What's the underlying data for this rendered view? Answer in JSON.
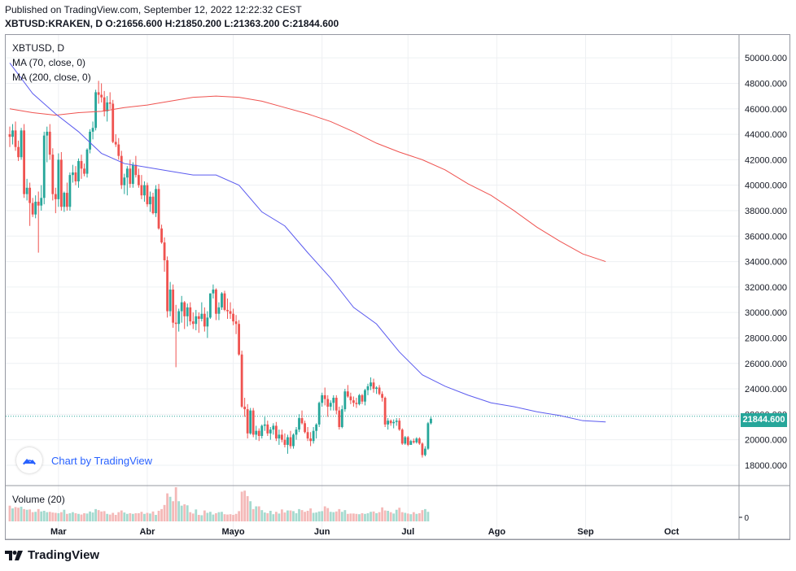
{
  "header": {
    "published": "Published on TradingView.com, September 12, 2022 12:22:32 CEST",
    "symbol": "XBTUSD:KRAKEN, D",
    "ohlc": " O:21656.600 H:21850.200 L:21363.200 C:21844.600"
  },
  "legend": {
    "title": "XBTUSD, D",
    "ma70": "MA (70, close, 0)",
    "ma200": "MA (200, close, 0)",
    "volume": "Volume (20)"
  },
  "badge": {
    "text": "Chart by TradingView",
    "icon": "tradingview-cloud-icon"
  },
  "last_price_label": "21844.600",
  "footer": {
    "logo_text": "TradingView",
    "icon": "tradingview-logo-icon"
  },
  "colors": {
    "up": "#26a69a",
    "down": "#ef5350",
    "ma70": "#5b5bef",
    "ma200": "#ef5350",
    "grid": "#eef0f3",
    "vol_up": "#a5dacf",
    "vol_down": "#f4b9b8"
  },
  "chart_data": {
    "type": "candlestick",
    "title": "XBTUSD, D",
    "y_ticks": [
      18000,
      20000,
      22000,
      24000,
      26000,
      28000,
      30000,
      32000,
      34000,
      36000,
      38000,
      40000,
      42000,
      44000,
      46000,
      48000,
      50000
    ],
    "y_tick_labels": [
      "18000.000",
      "20000.000",
      "22000.000",
      "24000.000",
      "26000.000",
      "28000.000",
      "30000.000",
      "32000.000",
      "34000.000",
      "36000.000",
      "38000.000",
      "40000.000",
      "42000.000",
      "44000.000",
      "46000.000",
      "48000.000",
      "50000.000"
    ],
    "ylim": [
      16400,
      51800
    ],
    "volume_tick_label": "0",
    "x_labels": [
      "Mar",
      "Abr",
      "Mayo",
      "Jun",
      "Jul",
      "Ago",
      "Sep",
      "Oct"
    ],
    "x_label_day_index": [
      17,
      48,
      78,
      109,
      139,
      170,
      201,
      231
    ],
    "last_price": 21844.6,
    "ma70": [
      [
        0,
        49600
      ],
      [
        8,
        47200
      ],
      [
        16,
        45600
      ],
      [
        24,
        44200
      ],
      [
        32,
        42500
      ],
      [
        40,
        41700
      ],
      [
        48,
        41400
      ],
      [
        56,
        41100
      ],
      [
        64,
        40800
      ],
      [
        72,
        40800
      ],
      [
        80,
        40000
      ],
      [
        88,
        37900
      ],
      [
        96,
        36800
      ],
      [
        104,
        34700
      ],
      [
        112,
        32700
      ],
      [
        120,
        30400
      ],
      [
        128,
        29100
      ],
      [
        136,
        26900
      ],
      [
        144,
        25100
      ],
      [
        152,
        24200
      ],
      [
        160,
        23500
      ],
      [
        168,
        22900
      ],
      [
        176,
        22600
      ],
      [
        184,
        22200
      ],
      [
        192,
        21900
      ],
      [
        200,
        21500
      ],
      [
        208,
        21400
      ]
    ],
    "ma200": [
      [
        0,
        46000
      ],
      [
        8,
        45700
      ],
      [
        16,
        45500
      ],
      [
        24,
        45700
      ],
      [
        32,
        45800
      ],
      [
        40,
        46100
      ],
      [
        48,
        46300
      ],
      [
        56,
        46600
      ],
      [
        64,
        46900
      ],
      [
        72,
        47000
      ],
      [
        80,
        46900
      ],
      [
        88,
        46600
      ],
      [
        96,
        46100
      ],
      [
        104,
        45600
      ],
      [
        112,
        45000
      ],
      [
        120,
        44200
      ],
      [
        128,
        43300
      ],
      [
        136,
        42600
      ],
      [
        144,
        42000
      ],
      [
        152,
        41200
      ],
      [
        160,
        40100
      ],
      [
        168,
        39200
      ],
      [
        176,
        38000
      ],
      [
        184,
        36700
      ],
      [
        192,
        35600
      ],
      [
        200,
        34600
      ],
      [
        208,
        34000
      ]
    ],
    "candles": [
      [
        44000,
        44600,
        43000,
        43800
      ],
      [
        43800,
        44800,
        43200,
        44300
      ],
      [
        44300,
        45000,
        42700,
        43000
      ],
      [
        43000,
        43500,
        41900,
        42200
      ],
      [
        42200,
        44500,
        42000,
        44300
      ],
      [
        44300,
        44800,
        39000,
        39300
      ],
      [
        39300,
        40500,
        38800,
        39800
      ],
      [
        39800,
        40200,
        36800,
        38600
      ],
      [
        38600,
        39000,
        37500,
        37700
      ],
      [
        37700,
        39200,
        37400,
        38700
      ],
      [
        38700,
        39500,
        34700,
        38400
      ],
      [
        38400,
        40000,
        38000,
        39000
      ],
      [
        39000,
        44200,
        38500,
        43900
      ],
      [
        43900,
        44600,
        41800,
        44200
      ],
      [
        44200,
        44800,
        42000,
        42400
      ],
      [
        42400,
        42900,
        38800,
        39300
      ],
      [
        39300,
        39800,
        37800,
        38900
      ],
      [
        38900,
        42500,
        38300,
        42000
      ],
      [
        42000,
        42600,
        38000,
        38300
      ],
      [
        38300,
        39500,
        37900,
        39400
      ],
      [
        39400,
        40200,
        38000,
        38300
      ],
      [
        38300,
        41000,
        38000,
        40800
      ],
      [
        40800,
        41600,
        40200,
        41000
      ],
      [
        41000,
        41500,
        40000,
        40300
      ],
      [
        40300,
        42100,
        39800,
        41900
      ],
      [
        41900,
        42400,
        40500,
        41300
      ],
      [
        41300,
        41700,
        40700,
        40900
      ],
      [
        40900,
        42900,
        40600,
        42800
      ],
      [
        42800,
        44400,
        42500,
        44200
      ],
      [
        44200,
        45000,
        43600,
        44500
      ],
      [
        44500,
        47500,
        44300,
        47300
      ],
      [
        47300,
        48200,
        46400,
        47100
      ],
      [
        47100,
        48000,
        46500,
        46900
      ],
      [
        46900,
        47400,
        45400,
        45800
      ],
      [
        45800,
        47000,
        45000,
        46500
      ],
      [
        46500,
        47300,
        46000,
        46400
      ],
      [
        46400,
        46700,
        43300,
        43400
      ],
      [
        43400,
        44000,
        43000,
        43200
      ],
      [
        43200,
        43700,
        42000,
        42300
      ],
      [
        42300,
        42700,
        39700,
        40000
      ],
      [
        40000,
        40900,
        39300,
        40600
      ],
      [
        40600,
        41500,
        39200,
        41300
      ],
      [
        41300,
        42000,
        39800,
        40100
      ],
      [
        40100,
        41800,
        39800,
        41600
      ],
      [
        41600,
        42300,
        40600,
        40800
      ],
      [
        40800,
        41300,
        39800,
        40000
      ],
      [
        40000,
        40800,
        38900,
        39200
      ],
      [
        39200,
        40300,
        38700,
        40000
      ],
      [
        40000,
        40200,
        38300,
        38500
      ],
      [
        38500,
        39500,
        37900,
        39100
      ],
      [
        39100,
        39400,
        37700,
        37800
      ],
      [
        37800,
        40000,
        37500,
        39700
      ],
      [
        39700,
        40100,
        36500,
        36600
      ],
      [
        36600,
        36900,
        35400,
        35500
      ],
      [
        35500,
        35900,
        33200,
        34100
      ],
      [
        34100,
        34400,
        29600,
        30100
      ],
      [
        30100,
        32400,
        29700,
        31800
      ],
      [
        31800,
        32200,
        28800,
        29200
      ],
      [
        29200,
        30600,
        25700,
        29100
      ],
      [
        29100,
        30300,
        28500,
        30100
      ],
      [
        30100,
        31300,
        29200,
        30800
      ],
      [
        30800,
        30900,
        28700,
        29700
      ],
      [
        29700,
        30700,
        28900,
        30400
      ],
      [
        30400,
        30800,
        29000,
        29300
      ],
      [
        29300,
        30000,
        28700,
        29100
      ],
      [
        29100,
        30200,
        28600,
        29700
      ],
      [
        29700,
        30000,
        28400,
        29500
      ],
      [
        29500,
        30800,
        29300,
        29900
      ],
      [
        29900,
        30400,
        28500,
        28900
      ],
      [
        28900,
        30100,
        28000,
        29600
      ],
      [
        29600,
        31500,
        29500,
        31500
      ],
      [
        31500,
        32200,
        31100,
        31800
      ],
      [
        31800,
        31900,
        29400,
        29900
      ],
      [
        29900,
        30800,
        29400,
        30400
      ],
      [
        30400,
        31600,
        30200,
        31500
      ],
      [
        31500,
        31700,
        30100,
        30200
      ],
      [
        30200,
        31100,
        29500,
        30100
      ],
      [
        30100,
        30800,
        29500,
        29900
      ],
      [
        29900,
        30300,
        29000,
        29300
      ],
      [
        29300,
        29800,
        28300,
        29100
      ],
      [
        29100,
        29400,
        26600,
        26700
      ],
      [
        26700,
        27000,
        22500,
        22600
      ],
      [
        22600,
        23300,
        21800,
        22400
      ],
      [
        22400,
        22800,
        20100,
        20500
      ],
      [
        20500,
        22500,
        20400,
        22300
      ],
      [
        22300,
        22500,
        20200,
        20400
      ],
      [
        20400,
        21100,
        20000,
        20700
      ],
      [
        20700,
        20900,
        19900,
        20300
      ],
      [
        20300,
        21200,
        20100,
        21100
      ],
      [
        21100,
        21800,
        20700,
        21200
      ],
      [
        21200,
        21500,
        20300,
        20500
      ],
      [
        20500,
        21000,
        20000,
        20800
      ],
      [
        20800,
        21300,
        20400,
        21100
      ],
      [
        21100,
        21400,
        19900,
        20100
      ],
      [
        20100,
        20800,
        19600,
        20400
      ],
      [
        20400,
        20800,
        19800,
        20000
      ],
      [
        20000,
        20500,
        19400,
        19600
      ],
      [
        19600,
        20400,
        18900,
        20200
      ],
      [
        20200,
        20700,
        19300,
        19500
      ],
      [
        19500,
        20500,
        19300,
        20400
      ],
      [
        20400,
        21000,
        20000,
        20800
      ],
      [
        20800,
        22000,
        20600,
        21700
      ],
      [
        21700,
        22300,
        21200,
        21300
      ],
      [
        21300,
        21500,
        20500,
        20600
      ],
      [
        20600,
        21000,
        19900,
        20100
      ],
      [
        20100,
        20600,
        19500,
        19900
      ],
      [
        19900,
        21000,
        19700,
        20700
      ],
      [
        20700,
        21300,
        20100,
        21200
      ],
      [
        21200,
        23000,
        21000,
        22900
      ],
      [
        22900,
        23700,
        22600,
        23500
      ],
      [
        23500,
        24100,
        22700,
        23200
      ],
      [
        23200,
        23500,
        21800,
        22600
      ],
      [
        22600,
        23100,
        22300,
        22900
      ],
      [
        22900,
        23500,
        22300,
        23300
      ],
      [
        23300,
        23500,
        22000,
        22300
      ],
      [
        22300,
        22600,
        20800,
        21000
      ],
      [
        21000,
        22700,
        20900,
        22400
      ],
      [
        22400,
        24000,
        22200,
        23800
      ],
      [
        23800,
        24300,
        23300,
        23400
      ],
      [
        23400,
        23700,
        22800,
        23100
      ],
      [
        23100,
        23400,
        22600,
        22900
      ],
      [
        22900,
        23300,
        22500,
        22800
      ],
      [
        22800,
        23600,
        22700,
        23500
      ],
      [
        23500,
        23600,
        22800,
        23000
      ],
      [
        23000,
        24000,
        22700,
        23900
      ],
      [
        23900,
        24400,
        23500,
        24200
      ],
      [
        24200,
        24900,
        23900,
        24500
      ],
      [
        24500,
        24800,
        23700,
        24000
      ],
      [
        24000,
        24200,
        23600,
        24100
      ],
      [
        24100,
        24300,
        23500,
        23600
      ],
      [
        23600,
        23800,
        23000,
        23300
      ],
      [
        23300,
        23400,
        21000,
        21200
      ],
      [
        21200,
        21700,
        20800,
        21500
      ],
      [
        21500,
        21600,
        21100,
        21300
      ],
      [
        21300,
        21600,
        20900,
        21400
      ],
      [
        21400,
        21700,
        21100,
        21500
      ],
      [
        21500,
        21700,
        20700,
        20800
      ],
      [
        20800,
        20900,
        19600,
        19700
      ],
      [
        19700,
        20300,
        19600,
        20200
      ],
      [
        20200,
        20300,
        19500,
        19600
      ],
      [
        19600,
        20000,
        19600,
        19900
      ],
      [
        19900,
        20100,
        19700,
        19800
      ],
      [
        19800,
        20200,
        19700,
        20100
      ],
      [
        20100,
        20200,
        19600,
        19700
      ],
      [
        19700,
        19800,
        18600,
        18800
      ],
      [
        18800,
        19500,
        18700,
        19300
      ],
      [
        19300,
        21400,
        19200,
        21300
      ],
      [
        21300,
        21800,
        21200,
        21650
      ]
    ],
    "volumes": [
      0.46,
      0.38,
      0.42,
      0.4,
      0.43,
      0.36,
      0.34,
      0.35,
      0.27,
      0.28,
      0.36,
      0.29,
      0.31,
      0.27,
      0.28,
      0.26,
      0.25,
      0.24,
      0.27,
      0.34,
      0.22,
      0.24,
      0.27,
      0.24,
      0.22,
      0.2,
      0.24,
      0.23,
      0.29,
      0.26,
      0.36,
      0.33,
      0.29,
      0.3,
      0.22,
      0.2,
      0.25,
      0.19,
      0.27,
      0.32,
      0.26,
      0.22,
      0.24,
      0.22,
      0.24,
      0.24,
      0.28,
      0.22,
      0.25,
      0.23,
      0.29,
      0.19,
      0.31,
      0.36,
      0.48,
      0.82,
      0.72,
      0.59,
      1.0,
      0.59,
      0.46,
      0.5,
      0.47,
      0.27,
      0.23,
      0.35,
      0.19,
      0.18,
      0.32,
      0.25,
      0.28,
      0.2,
      0.24,
      0.27,
      0.28,
      0.21,
      0.2,
      0.21,
      0.19,
      0.22,
      0.3,
      0.87,
      0.9,
      0.74,
      0.59,
      0.36,
      0.44,
      0.44,
      0.33,
      0.26,
      0.24,
      0.31,
      0.21,
      0.28,
      0.23,
      0.35,
      0.26,
      0.32,
      0.32,
      0.3,
      0.24,
      0.36,
      0.33,
      0.28,
      0.31,
      0.38,
      0.25,
      0.26,
      0.29,
      0.3,
      0.44,
      0.39,
      0.28,
      0.27,
      0.29,
      0.36,
      0.28,
      0.33,
      0.22,
      0.23,
      0.23,
      0.22,
      0.21,
      0.24,
      0.22,
      0.24,
      0.28,
      0.29,
      0.24,
      0.27,
      0.41,
      0.32,
      0.31,
      0.27,
      0.23,
      0.34,
      0.4,
      0.27,
      0.25,
      0.23,
      0.21,
      0.27,
      0.22,
      0.24,
      0.33,
      0.36,
      0.28
    ]
  }
}
